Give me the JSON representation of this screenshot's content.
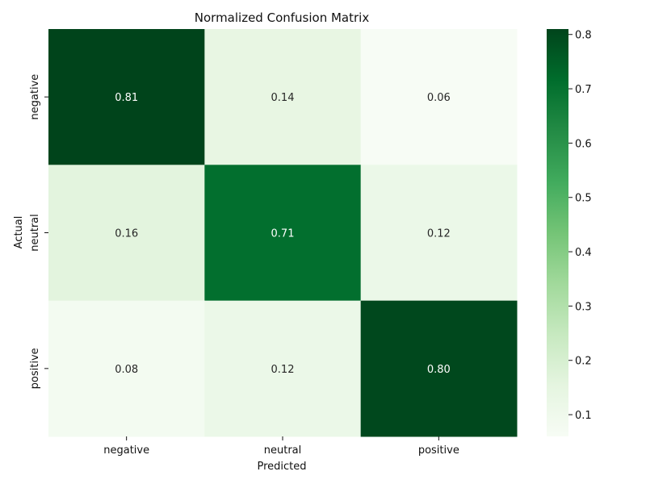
{
  "chart_data": {
    "type": "heatmap",
    "title": "Normalized Confusion Matrix",
    "xlabel": "Predicted",
    "ylabel": "Actual",
    "x_categories": [
      "negative",
      "neutral",
      "positive"
    ],
    "y_categories": [
      "negative",
      "neutral",
      "positive"
    ],
    "values": [
      [
        0.81,
        0.14,
        0.06
      ],
      [
        0.16,
        0.71,
        0.12
      ],
      [
        0.08,
        0.12,
        0.8
      ]
    ],
    "value_labels": [
      [
        "0.81",
        "0.14",
        "0.06"
      ],
      [
        "0.16",
        "0.71",
        "0.12"
      ],
      [
        "0.08",
        "0.12",
        "0.80"
      ]
    ],
    "colormap": "Greens",
    "color_range": [
      0.06,
      0.81
    ],
    "colorbar_ticks": [
      0.1,
      0.2,
      0.3,
      0.4,
      0.5,
      0.6,
      0.7,
      0.8
    ],
    "colorbar_tick_labels": [
      "0.1",
      "0.2",
      "0.3",
      "0.4",
      "0.5",
      "0.6",
      "0.7",
      "0.8"
    ],
    "colors": {
      "low": "#f7fcf5",
      "high": "#00441b",
      "text_dark": "#262626",
      "text_light": "#ffffff"
    }
  }
}
